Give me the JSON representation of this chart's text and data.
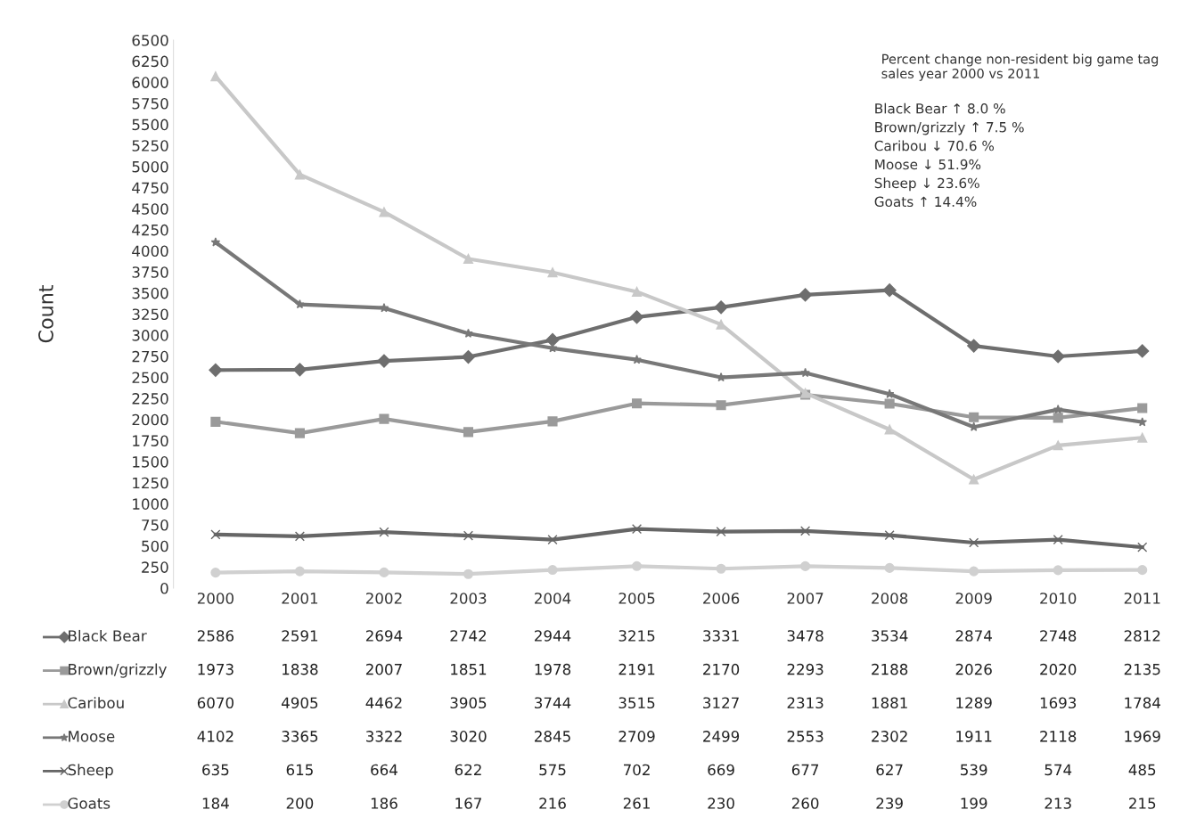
{
  "chart_data": {
    "type": "line",
    "ylabel": "Count",
    "categories": [
      "2000",
      "2001",
      "2002",
      "2003",
      "2004",
      "2005",
      "2006",
      "2007",
      "2008",
      "2009",
      "2010",
      "2011"
    ],
    "ylim": [
      0,
      6500
    ],
    "yticks": [
      0,
      250,
      500,
      750,
      1000,
      1250,
      1500,
      1750,
      2000,
      2250,
      2500,
      2750,
      3000,
      3250,
      3500,
      3750,
      4000,
      4250,
      4500,
      4750,
      5000,
      5250,
      5500,
      5750,
      6000,
      6250,
      6500
    ],
    "grid": false,
    "legend": "bottom",
    "data_labels": true,
    "series": [
      {
        "name": "Black Bear",
        "color": "#6e6e6e",
        "marker": "diamond",
        "values": [
          2586,
          2591,
          2694,
          2742,
          2944,
          3215,
          3331,
          3478,
          3534,
          2874,
          2748,
          2812
        ]
      },
      {
        "name": "Brown/grizzly",
        "color": "#9a9a9a",
        "marker": "square",
        "values": [
          1973,
          1838,
          2007,
          1851,
          1978,
          2191,
          2170,
          2293,
          2188,
          2026,
          2020,
          2135
        ]
      },
      {
        "name": "Caribou",
        "color": "#c8c8c8",
        "marker": "triangle",
        "values": [
          6070,
          4905,
          4462,
          3905,
          3744,
          3515,
          3127,
          2313,
          1881,
          1289,
          1693,
          1784
        ]
      },
      {
        "name": "Moose",
        "color": "#787878",
        "marker": "star",
        "values": [
          4102,
          3365,
          3322,
          3020,
          2845,
          2709,
          2499,
          2553,
          2302,
          1911,
          2118,
          1969
        ]
      },
      {
        "name": "Sheep",
        "color": "#666666",
        "marker": "cross",
        "values": [
          635,
          615,
          664,
          622,
          575,
          702,
          669,
          677,
          627,
          539,
          574,
          485
        ]
      },
      {
        "name": "Goats",
        "color": "#d0d0d0",
        "marker": "circle",
        "values": [
          184,
          200,
          186,
          167,
          216,
          261,
          230,
          260,
          239,
          199,
          213,
          215
        ]
      }
    ],
    "annotations": [
      "Percent change non-resident big game tag sales year 2000 vs 2011",
      "Black Bear ↑ 8.0 %",
      "Brown/grizzly ↑ 7.5 %",
      "Caribou ↓ 70.6 %",
      "Moose ↓ 51.9%",
      "Sheep ↓ 23.6%",
      "Goats ↑ 14.4%"
    ]
  }
}
